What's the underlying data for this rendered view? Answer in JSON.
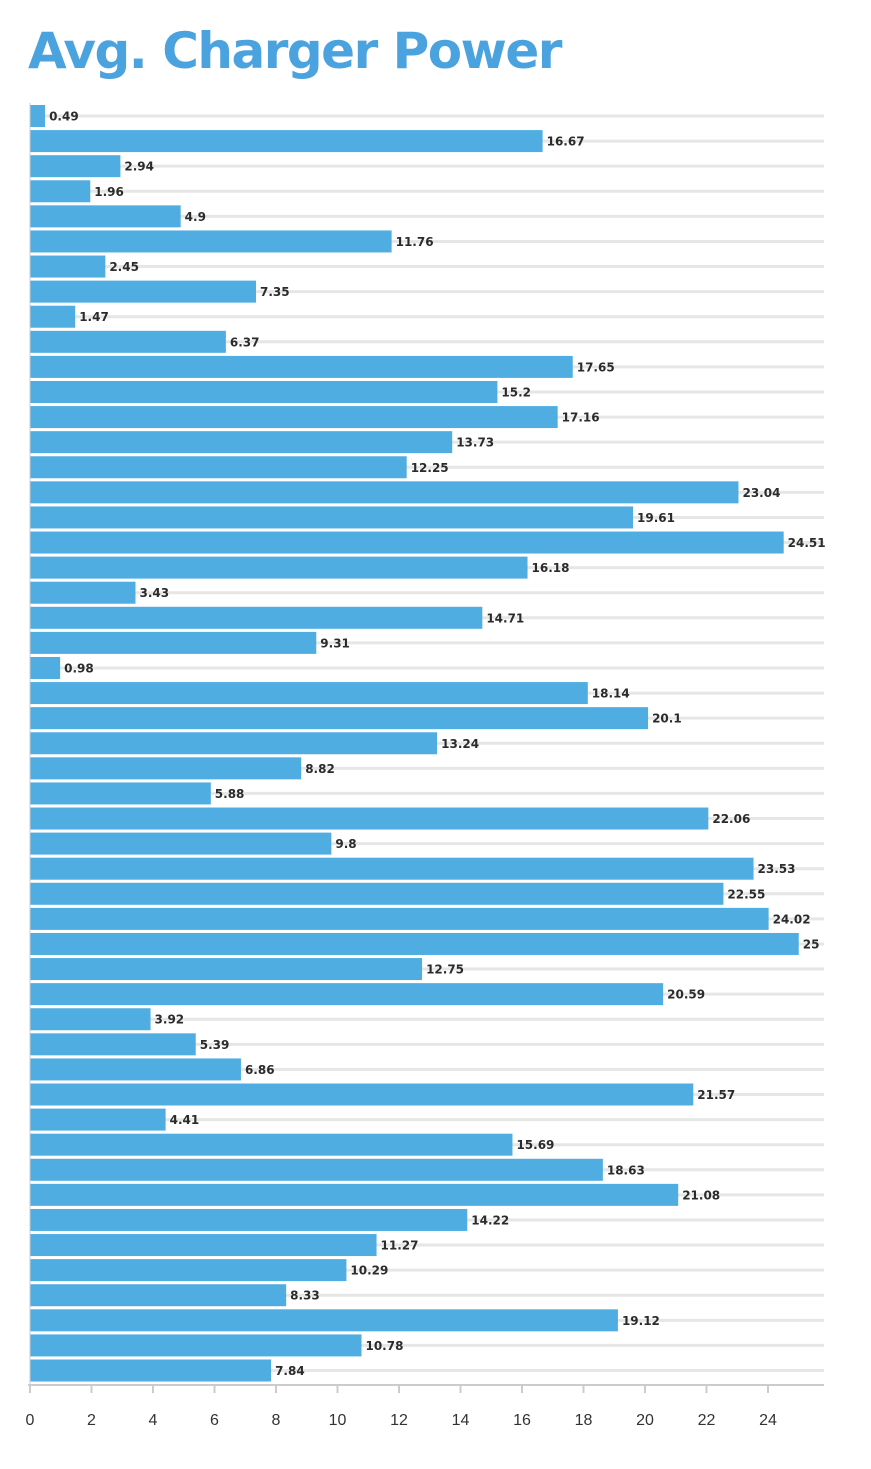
{
  "chart_data": {
    "type": "bar",
    "orientation": "horizontal",
    "title": "Avg. Charger Power",
    "values": [
      0.49,
      16.67,
      2.94,
      1.96,
      4.9,
      11.76,
      2.45,
      7.35,
      1.47,
      6.37,
      17.65,
      15.2,
      17.16,
      13.73,
      12.25,
      23.04,
      19.61,
      24.51,
      16.18,
      3.43,
      14.71,
      9.31,
      0.98,
      18.14,
      20.1,
      13.24,
      8.82,
      5.88,
      22.06,
      9.8,
      23.53,
      22.55,
      24.02,
      25,
      12.75,
      20.59,
      3.92,
      5.39,
      6.86,
      21.57,
      4.41,
      15.69,
      18.63,
      21.08,
      14.22,
      11.27,
      10.29,
      8.33,
      19.12,
      10.78,
      7.84
    ],
    "xlim": [
      0,
      26
    ],
    "xticks": [
      0,
      2,
      4,
      6,
      8,
      10,
      12,
      14,
      16,
      18,
      20,
      22,
      24
    ],
    "grid": true,
    "data_labels": true,
    "bar_color": "#4fade2",
    "grid_color": "#e6e6e6",
    "axis_color": "#cccccc",
    "title_color": "#4aa3df"
  }
}
